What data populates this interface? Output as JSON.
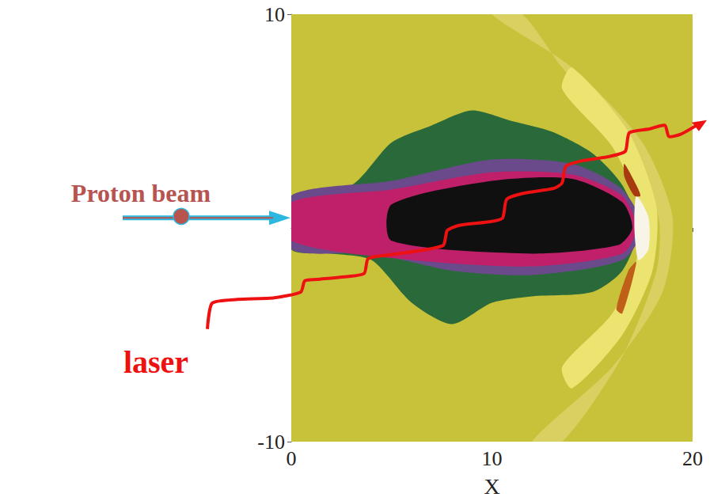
{
  "chart_data": {
    "type": "contour",
    "xlabel": "X",
    "xlim": [
      0,
      20
    ],
    "ylim": [
      -10,
      10
    ],
    "xticks": [
      0,
      10,
      20
    ],
    "yticks": [
      -10,
      10
    ],
    "grid": false,
    "annotations": [
      "Proton beam",
      "laser"
    ],
    "regions": [
      {
        "color": "#c8c23a",
        "points": [
          [
            0,
            -10
          ],
          [
            20,
            -10
          ],
          [
            20,
            10
          ],
          [
            0,
            10
          ]
        ]
      },
      {
        "color": "#d8d060",
        "points": [
          [
            10,
            10
          ],
          [
            14,
            7.5
          ],
          [
            17.5,
            4
          ],
          [
            19,
            0.5
          ],
          [
            18.5,
            -3
          ],
          [
            16,
            -6.5
          ],
          [
            12,
            -10
          ],
          [
            13.5,
            -10
          ],
          [
            16.5,
            -6
          ],
          [
            18.2,
            -2
          ],
          [
            18.3,
            0.5
          ],
          [
            16.8,
            4
          ],
          [
            13.5,
            7.5
          ],
          [
            11.5,
            10
          ]
        ]
      },
      {
        "color": "#ece470",
        "points": [
          [
            14,
            7.5
          ],
          [
            16.8,
            4.5
          ],
          [
            18.2,
            1
          ],
          [
            18,
            -2
          ],
          [
            16.5,
            -5
          ],
          [
            14,
            -7.5
          ],
          [
            13.5,
            -6.5
          ],
          [
            16,
            -4
          ],
          [
            17.2,
            -1.5
          ],
          [
            17.3,
            1
          ],
          [
            16,
            3.8
          ],
          [
            13.5,
            6.5
          ]
        ]
      },
      {
        "color": "#2a6a3a",
        "points": [
          [
            0,
            1.5
          ],
          [
            3,
            2
          ],
          [
            5,
            4
          ],
          [
            7,
            4.8
          ],
          [
            9,
            5.5
          ],
          [
            11,
            5
          ],
          [
            13,
            4.5
          ],
          [
            15,
            3.5
          ],
          [
            16.5,
            2
          ],
          [
            17.3,
            0
          ],
          [
            16.5,
            -2
          ],
          [
            15,
            -3
          ],
          [
            12,
            -3.2
          ],
          [
            10,
            -3.5
          ],
          [
            8,
            -4.5
          ],
          [
            6,
            -3.5
          ],
          [
            4,
            -1.5
          ],
          [
            2,
            -1.2
          ],
          [
            0,
            -1
          ]
        ]
      },
      {
        "color": "#6a4a8a",
        "points": [
          [
            0,
            1.5
          ],
          [
            5,
            2.2
          ],
          [
            10,
            3.2
          ],
          [
            14,
            3
          ],
          [
            16.5,
            1.8
          ],
          [
            17.5,
            0
          ],
          [
            16.5,
            -1.5
          ],
          [
            12,
            -2.2
          ],
          [
            8,
            -2
          ],
          [
            4,
            -1.2
          ],
          [
            0,
            -1
          ]
        ]
      },
      {
        "color": "#c0206a",
        "points": [
          [
            0,
            1.2
          ],
          [
            5,
            1.8
          ],
          [
            10,
            2.6
          ],
          [
            14,
            2.5
          ],
          [
            16.5,
            1.5
          ],
          [
            17.2,
            0
          ],
          [
            16.5,
            -1.2
          ],
          [
            12,
            -1.8
          ],
          [
            6,
            -1.5
          ],
          [
            0,
            -0.6
          ]
        ]
      },
      {
        "color": "#101010",
        "points": [
          [
            5,
            1.1
          ],
          [
            10,
            2.2
          ],
          [
            14,
            2.3
          ],
          [
            16.5,
            1.2
          ],
          [
            17,
            0
          ],
          [
            16.3,
            -0.8
          ],
          [
            12,
            -1.2
          ],
          [
            5,
            -0.6
          ]
        ]
      },
      {
        "color": "#f8f4e8",
        "points": [
          [
            17.2,
            1.5
          ],
          [
            17.8,
            0.5
          ],
          [
            17.8,
            -1
          ],
          [
            17.3,
            -1.5
          ],
          [
            17.1,
            0
          ]
        ]
      },
      {
        "color": "#a83a10",
        "points": [
          [
            16.6,
            3
          ],
          [
            17.2,
            2
          ],
          [
            17.4,
            1.5
          ],
          [
            17.1,
            1.5
          ],
          [
            16.6,
            2.4
          ]
        ]
      },
      {
        "color": "#c06018",
        "points": [
          [
            16.8,
            -2
          ],
          [
            17.2,
            -1.6
          ],
          [
            16.5,
            -4
          ],
          [
            16.2,
            -3.8
          ]
        ]
      }
    ]
  }
}
